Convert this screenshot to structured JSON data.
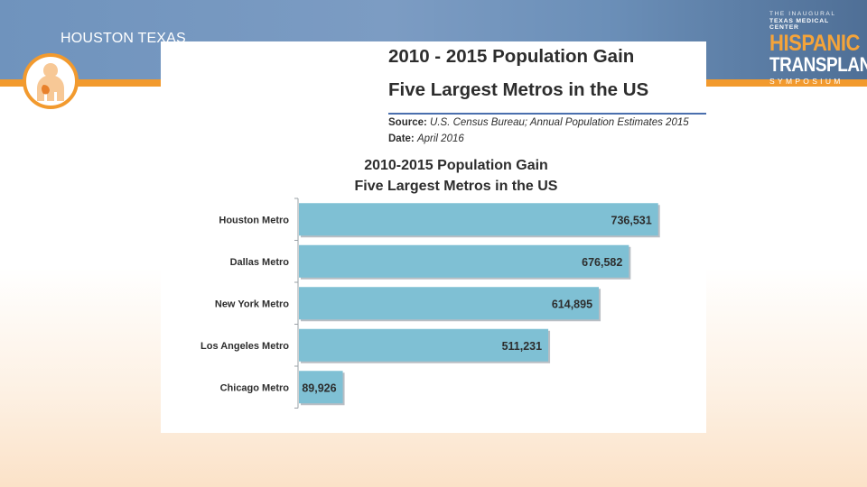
{
  "slide": {
    "location": "HOUSTON TEXAS",
    "symposium": {
      "line1": "THE INAUGURAL",
      "line2": "TEXAS MEDICAL CENTER",
      "line3": "HISPANIC",
      "line4": "TRANSPLANT",
      "line5": "SYMPOSIUM"
    }
  },
  "figure": {
    "header_title_line1": "2010 - 2015 Population Gain",
    "header_title_line2": "Five Largest Metros in the US",
    "source_label": "Source:",
    "source_text": "U.S. Census Bureau; Annual Population Estimates 2015",
    "date_label": "Date:",
    "date_text": "April 2016"
  },
  "colors": {
    "bar": "#7fc0d4",
    "bar_shadow": "#b9bec4",
    "banner_orange": "#f29a2e"
  },
  "chart_data": {
    "type": "bar",
    "orientation": "horizontal",
    "title": "2010-2015 Population Gain",
    "subtitle": "Five Largest Metros in the US",
    "categories": [
      "Houston Metro",
      "Dallas Metro",
      "New York Metro",
      "Los Angeles Metro",
      "Chicago Metro"
    ],
    "values": [
      736531,
      676582,
      614895,
      511231,
      89926
    ],
    "value_labels": [
      "736,531",
      "676,582",
      "614,895",
      "511,231",
      "89,926"
    ],
    "xlim": [
      0,
      750000
    ],
    "grid": false,
    "legend": "none"
  }
}
